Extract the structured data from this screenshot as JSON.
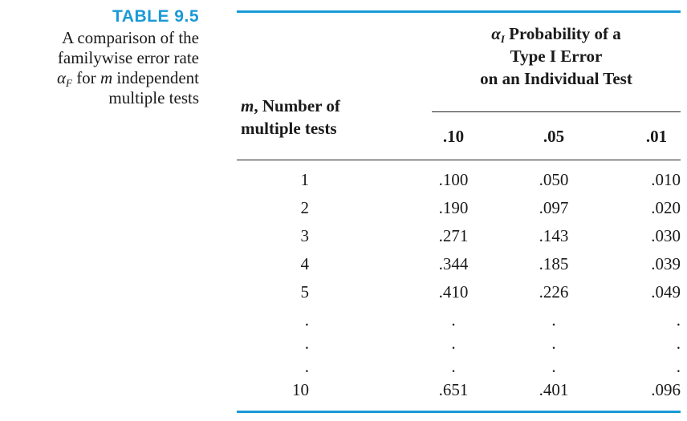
{
  "caption": {
    "number": "TABLE 9.5",
    "line1": "A comparison of the",
    "line2": "familywise error rate",
    "symbol": "α",
    "symbol_sub": "F",
    "line3_rest": " for ",
    "line3_var": "m",
    "line3_end": " independent",
    "line4": "multiple tests"
  },
  "header": {
    "group_symbol": "α",
    "group_symbol_sub": "I",
    "group_line1_rest": " Probability of a",
    "group_line2": "Type I Error",
    "group_line3": "on an Individual Test",
    "m_var": "m",
    "m_line1_rest": ", Number of",
    "m_line2": "multiple tests",
    "columns": [
      ".10",
      ".05",
      ".01"
    ]
  },
  "rows": [
    {
      "m": "1",
      "v": [
        ".100",
        ".050",
        ".010"
      ]
    },
    {
      "m": "2",
      "v": [
        ".190",
        ".097",
        ".020"
      ]
    },
    {
      "m": "3",
      "v": [
        ".271",
        ".143",
        ".030"
      ]
    },
    {
      "m": "4",
      "v": [
        ".344",
        ".185",
        ".039"
      ]
    },
    {
      "m": "5",
      "v": [
        ".410",
        ".226",
        ".049"
      ]
    },
    {
      "m": ".",
      "v": [
        ".",
        ".",
        "."
      ]
    },
    {
      "m": ".",
      "v": [
        ".",
        ".",
        "."
      ]
    },
    {
      "m": ".",
      "v": [
        ".",
        ".",
        "."
      ]
    },
    {
      "m": "10",
      "v": [
        ".651",
        ".401",
        ".096"
      ]
    }
  ],
  "colors": {
    "accent": "#1a9ad6",
    "text": "#1a1a1a"
  }
}
